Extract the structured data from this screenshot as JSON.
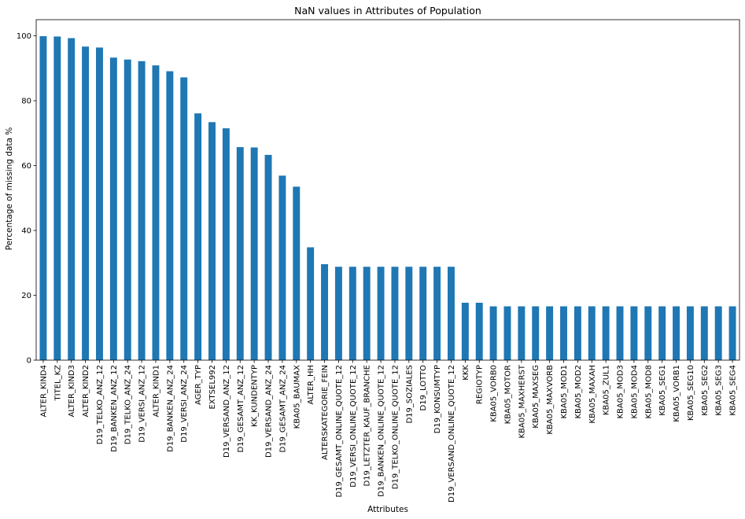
{
  "chart_data": {
    "type": "bar",
    "title": "NaN values in Attributes of Population",
    "xlabel": "Attributes",
    "ylabel": "Percentage of missing data %",
    "ylim": [
      0,
      105
    ],
    "yticks": [
      0,
      20,
      40,
      60,
      80,
      100
    ],
    "grid": false,
    "bar_color": "#1f77b4",
    "categories": [
      "ALTER_KIND4",
      "TITEL_KZ",
      "ALTER_KIND3",
      "ALTER_KIND2",
      "D19_TELKO_ANZ_12",
      "D19_BANKEN_ANZ_12",
      "D19_TELKO_ANZ_24",
      "D19_VERSI_ANZ_12",
      "ALTER_KIND1",
      "D19_BANKEN_ANZ_24",
      "D19_VERSI_ANZ_24",
      "AGER_TYP",
      "EXTSEL992",
      "D19_VERSAND_ANZ_12",
      "D19_GESAMT_ANZ_12",
      "KK_KUNDENTYP",
      "D19_VERSAND_ANZ_24",
      "D19_GESAMT_ANZ_24",
      "KBA05_BAUMAX",
      "ALTER_HH",
      "ALTERSKATEGORIE_FEIN",
      "D19_GESAMT_ONLINE_QUOTE_12",
      "D19_VERSI_ONLINE_QUOTE_12",
      "D19_LETZTER_KAUF_BRANCHE",
      "D19_BANKEN_ONLINE_QUOTE_12",
      "D19_TELKO_ONLINE_QUOTE_12",
      "D19_SOZIALES",
      "D19_LOTTO",
      "D19_KONSUMTYP",
      "D19_VERSAND_ONLINE_QUOTE_12",
      "KKK",
      "REGIOTYP",
      "KBA05_VORB0",
      "KBA05_MOTOR",
      "KBA05_MAXHERST",
      "KBA05_MAXSEG",
      "KBA05_MAXVORB",
      "KBA05_MOD1",
      "KBA05_MOD2",
      "KBA05_MAXAH",
      "KBA05_ZUL1",
      "KBA05_MOD3",
      "KBA05_MOD4",
      "KBA05_MOD8",
      "KBA05_SEG1",
      "KBA05_VORB1",
      "KBA05_SEG10",
      "KBA05_SEG2",
      "KBA05_SEG3",
      "KBA05_SEG4"
    ],
    "values": [
      99.9,
      99.8,
      99.3,
      96.7,
      96.4,
      93.3,
      92.7,
      92.2,
      90.9,
      89.1,
      87.2,
      76.1,
      73.4,
      71.5,
      65.7,
      65.6,
      63.3,
      56.9,
      53.5,
      34.8,
      29.6,
      28.8,
      28.8,
      28.8,
      28.8,
      28.8,
      28.8,
      28.8,
      28.8,
      28.8,
      17.7,
      17.7,
      16.6,
      16.6,
      16.6,
      16.6,
      16.6,
      16.6,
      16.6,
      16.6,
      16.6,
      16.6,
      16.6,
      16.6,
      16.6,
      16.6,
      16.6,
      16.6,
      16.6,
      16.6
    ]
  }
}
